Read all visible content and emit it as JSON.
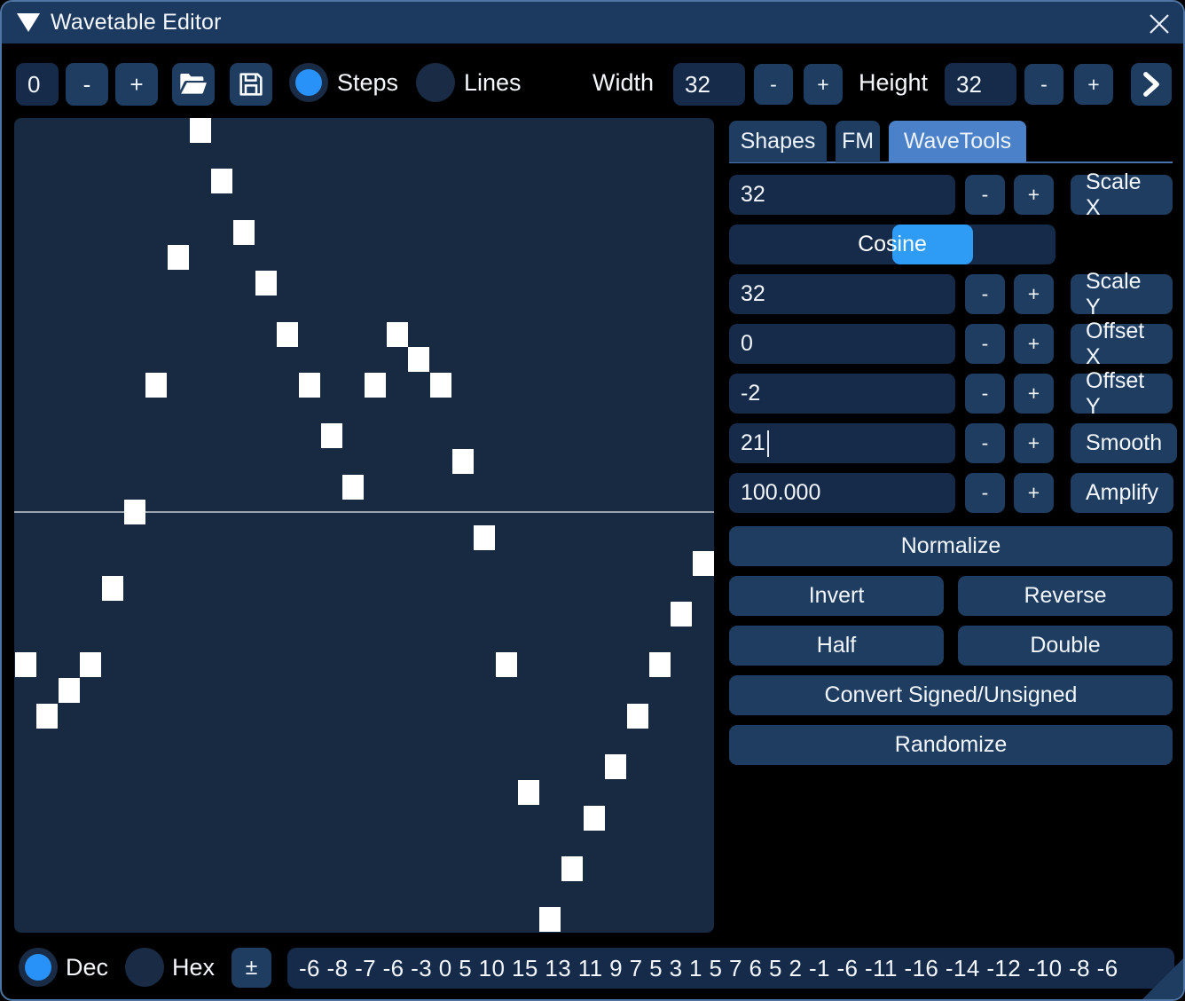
{
  "window": {
    "title": "Wavetable Editor"
  },
  "toolbar": {
    "wave_index": "0",
    "minus_label": "-",
    "plus_label": "+",
    "steps_label": "Steps",
    "lines_label": "Lines",
    "width_label": "Width",
    "width_value": "32",
    "height_label": "Height",
    "height_value": "32"
  },
  "chart_data": {
    "type": "bar",
    "title": "wavetable step display",
    "x": [
      0,
      1,
      2,
      3,
      4,
      5,
      6,
      7,
      8,
      9,
      10,
      11,
      12,
      13,
      14,
      15,
      16,
      17,
      18,
      19,
      20,
      21,
      22,
      23,
      24,
      25,
      26,
      27,
      28,
      29,
      30,
      31
    ],
    "values": [
      -6,
      -8,
      -7,
      -6,
      -3,
      0,
      5,
      10,
      15,
      13,
      11,
      9,
      7,
      5,
      3,
      1,
      5,
      7,
      6,
      5,
      2,
      -1,
      -6,
      -11,
      -16,
      -14,
      -12,
      -10,
      -8,
      -6,
      -4,
      -2
    ],
    "xlabel": "",
    "ylabel": "",
    "xlim": [
      0,
      31
    ],
    "ylim": [
      -16,
      15
    ],
    "grid": false,
    "legend": "none",
    "marker": "white-square-steps",
    "zero_line": true
  },
  "wavetools": {
    "tabs": [
      {
        "label": "Shapes"
      },
      {
        "label": "FM"
      },
      {
        "label": "WaveTools"
      }
    ],
    "active_tab": "WaveTools",
    "minus_label": "-",
    "plus_label": "+",
    "rows": [
      {
        "value": "32",
        "label": "Scale X"
      },
      {
        "value": "32",
        "label": "Scale Y"
      },
      {
        "value": "0",
        "label": "Offset X"
      },
      {
        "value": "-2",
        "label": "Offset Y"
      },
      {
        "value": "21",
        "label": "Smooth"
      },
      {
        "value": "100.000",
        "label": "Amplify"
      }
    ],
    "slider": {
      "label": "Cosine"
    },
    "buttons": {
      "normalize": "Normalize",
      "invert": "Invert",
      "reverse": "Reverse",
      "half": "Half",
      "double": "Double",
      "convert": "Convert Signed/Unsigned",
      "randomize": "Randomize"
    }
  },
  "bottom": {
    "dec_label": "Dec",
    "hex_label": "Hex",
    "sign_label": "±",
    "values_text": "-6 -8 -7 -6 -3 0 5 10 15 13 11 9 7 5 3 1 5 7 6 5 2 -1 -6 -11 -16 -14 -12 -10 -8 -6"
  },
  "colors": {
    "accent": "#2892f8",
    "slider_grab": "#2e9bf5",
    "active_tab": "#4b81c8",
    "button": "#1e3d60",
    "field": "#152b49",
    "titlebar": "#1c3a5f",
    "wave_bg": "#172a42",
    "step": "#ffffff",
    "centerline": "#9aa3ae",
    "window_border": "#4e75a3"
  }
}
